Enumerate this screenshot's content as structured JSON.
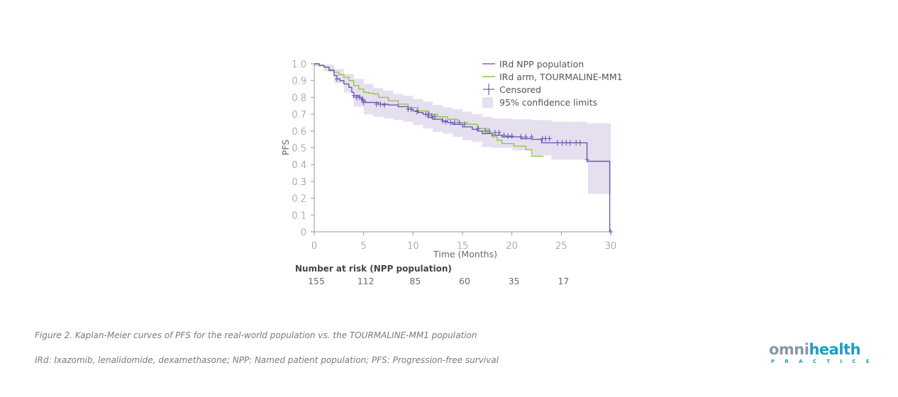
{
  "chart_data": {
    "type": "line",
    "subtype": "kaplan-meier",
    "xlabel": "Time (Months)",
    "ylabel": "PFS",
    "xlim": [
      0,
      30
    ],
    "ylim": [
      0,
      1.0
    ],
    "xticks": [
      0,
      5,
      10,
      15,
      20,
      25,
      30
    ],
    "xtick_labels": [
      "0",
      "5",
      "10",
      "15",
      "20",
      "25",
      "30"
    ],
    "yticks": [
      0,
      0.1,
      0.2,
      0.3,
      0.4,
      0.5,
      0.6,
      0.7,
      0.8,
      0.9,
      1.0
    ],
    "ytick_labels": [
      "0",
      "0.1",
      "0.2",
      "0.3",
      "0.4",
      "0.5",
      "0.6",
      "0.7",
      "0.8",
      "0.9",
      "1.0"
    ],
    "grid": false,
    "legend_position": "top-right",
    "legend": [
      {
        "label": "IRd NPP population",
        "kind": "line",
        "color": "#6a5aad"
      },
      {
        "label": "IRd arm, TOURMALINE-MM1",
        "kind": "line",
        "color": "#8cc63f"
      },
      {
        "label": "Censored",
        "kind": "marker",
        "color": "#6a5aad"
      },
      {
        "label": "95% confidence limits",
        "kind": "band",
        "color": "#e6dff0"
      }
    ],
    "series": [
      {
        "name": "IRd NPP population",
        "color": "#6a5aad",
        "steps": [
          [
            0,
            1.0
          ],
          [
            0.5,
            0.99
          ],
          [
            1.0,
            0.98
          ],
          [
            1.5,
            0.96
          ],
          [
            2.0,
            0.93
          ],
          [
            2.3,
            0.91
          ],
          [
            2.6,
            0.9
          ],
          [
            3.0,
            0.88
          ],
          [
            3.5,
            0.86
          ],
          [
            3.8,
            0.83
          ],
          [
            4.0,
            0.81
          ],
          [
            4.5,
            0.8
          ],
          [
            4.8,
            0.78
          ],
          [
            5.2,
            0.77
          ],
          [
            6.5,
            0.76
          ],
          [
            7.5,
            0.755
          ],
          [
            8.5,
            0.745
          ],
          [
            9.5,
            0.73
          ],
          [
            10.0,
            0.72
          ],
          [
            10.5,
            0.71
          ],
          [
            11.0,
            0.7
          ],
          [
            11.5,
            0.68
          ],
          [
            12.0,
            0.67
          ],
          [
            13.0,
            0.66
          ],
          [
            13.5,
            0.65
          ],
          [
            14.0,
            0.64
          ],
          [
            15.0,
            0.625
          ],
          [
            16.0,
            0.61
          ],
          [
            16.5,
            0.6
          ],
          [
            17.0,
            0.585
          ],
          [
            18.0,
            0.575
          ],
          [
            19.0,
            0.565
          ],
          [
            21.0,
            0.555
          ],
          [
            22.0,
            0.55
          ],
          [
            23.0,
            0.53
          ],
          [
            27.6,
            0.42
          ],
          [
            29.9,
            0.0
          ]
        ],
        "end": 29.9
      },
      {
        "name": "IRd arm, TOURMALINE-MM1",
        "color": "#8cc63f",
        "steps": [
          [
            0,
            1.0
          ],
          [
            0.5,
            0.99
          ],
          [
            1.0,
            0.98
          ],
          [
            1.5,
            0.965
          ],
          [
            2.0,
            0.95
          ],
          [
            2.5,
            0.935
          ],
          [
            3.0,
            0.92
          ],
          [
            3.5,
            0.9
          ],
          [
            4.0,
            0.87
          ],
          [
            4.5,
            0.85
          ],
          [
            5.0,
            0.83
          ],
          [
            5.5,
            0.825
          ],
          [
            6.0,
            0.82
          ],
          [
            6.5,
            0.8
          ],
          [
            7.5,
            0.78
          ],
          [
            8.5,
            0.76
          ],
          [
            9.5,
            0.74
          ],
          [
            10.5,
            0.72
          ],
          [
            11.5,
            0.7
          ],
          [
            12.5,
            0.685
          ],
          [
            13.5,
            0.67
          ],
          [
            14.5,
            0.65
          ],
          [
            15.5,
            0.64
          ],
          [
            16.5,
            0.615
          ],
          [
            17.5,
            0.59
          ],
          [
            18.0,
            0.565
          ],
          [
            18.5,
            0.545
          ],
          [
            19.0,
            0.525
          ],
          [
            20.2,
            0.51
          ],
          [
            21.4,
            0.49
          ],
          [
            22.0,
            0.45
          ]
        ],
        "end": 23.2
      }
    ],
    "censored": [
      [
        2.3,
        0.91
      ],
      [
        4.0,
        0.81
      ],
      [
        4.3,
        0.8
      ],
      [
        4.6,
        0.8
      ],
      [
        4.9,
        0.79
      ],
      [
        5.0,
        0.77
      ],
      [
        6.3,
        0.76
      ],
      [
        6.7,
        0.76
      ],
      [
        7.1,
        0.755
      ],
      [
        9.5,
        0.73
      ],
      [
        9.8,
        0.73
      ],
      [
        10.4,
        0.715
      ],
      [
        11.3,
        0.7
      ],
      [
        11.6,
        0.7
      ],
      [
        11.9,
        0.69
      ],
      [
        12.2,
        0.685
      ],
      [
        13.0,
        0.66
      ],
      [
        13.3,
        0.655
      ],
      [
        13.8,
        0.65
      ],
      [
        14.2,
        0.65
      ],
      [
        14.7,
        0.65
      ],
      [
        15.2,
        0.64
      ],
      [
        16.6,
        0.615
      ],
      [
        17.3,
        0.6
      ],
      [
        17.7,
        0.6
      ],
      [
        18.3,
        0.59
      ],
      [
        18.7,
        0.59
      ],
      [
        19.2,
        0.575
      ],
      [
        19.6,
        0.57
      ],
      [
        20.0,
        0.57
      ],
      [
        20.9,
        0.565
      ],
      [
        21.4,
        0.565
      ],
      [
        22.0,
        0.565
      ],
      [
        23.1,
        0.555
      ],
      [
        23.4,
        0.555
      ],
      [
        23.8,
        0.555
      ],
      [
        24.6,
        0.53
      ],
      [
        25.1,
        0.53
      ],
      [
        25.5,
        0.53
      ],
      [
        25.9,
        0.53
      ],
      [
        26.5,
        0.53
      ],
      [
        26.9,
        0.53
      ],
      [
        27.6,
        0.43
      ],
      [
        30,
        0.0
      ]
    ],
    "ci_band": {
      "upper": [
        [
          0,
          1.0
        ],
        [
          1.0,
          0.995
        ],
        [
          2.0,
          0.97
        ],
        [
          3.0,
          0.94
        ],
        [
          4.0,
          0.91
        ],
        [
          5.0,
          0.88
        ],
        [
          6.0,
          0.855
        ],
        [
          7.0,
          0.84
        ],
        [
          8.0,
          0.82
        ],
        [
          9.0,
          0.81
        ],
        [
          10.0,
          0.79
        ],
        [
          11.0,
          0.775
        ],
        [
          12.0,
          0.755
        ],
        [
          13.0,
          0.74
        ],
        [
          14.0,
          0.73
        ],
        [
          15.0,
          0.715
        ],
        [
          16.0,
          0.7
        ],
        [
          17.0,
          0.685
        ],
        [
          18.0,
          0.675
        ],
        [
          20.0,
          0.67
        ],
        [
          22.0,
          0.665
        ],
        [
          24.0,
          0.655
        ],
        [
          27.6,
          0.645
        ],
        [
          30.0,
          0.61
        ]
      ],
      "lower": [
        [
          0,
          0.985
        ],
        [
          1.0,
          0.955
        ],
        [
          2.0,
          0.885
        ],
        [
          3.0,
          0.83
        ],
        [
          4.0,
          0.745
        ],
        [
          5.0,
          0.7
        ],
        [
          6.0,
          0.685
        ],
        [
          7.0,
          0.675
        ],
        [
          8.0,
          0.665
        ],
        [
          9.0,
          0.655
        ],
        [
          10.0,
          0.635
        ],
        [
          11.0,
          0.615
        ],
        [
          12.0,
          0.595
        ],
        [
          13.0,
          0.585
        ],
        [
          14.0,
          0.565
        ],
        [
          15.0,
          0.545
        ],
        [
          16.0,
          0.535
        ],
        [
          17.0,
          0.505
        ],
        [
          18.0,
          0.5
        ],
        [
          20.0,
          0.485
        ],
        [
          22.0,
          0.455
        ],
        [
          24.0,
          0.43
        ],
        [
          27.6,
          0.43
        ],
        [
          27.7,
          0.225
        ],
        [
          30.0,
          0.225
        ]
      ]
    },
    "number_at_risk": {
      "title": "Number at risk (NPP population)",
      "times": [
        0,
        5,
        10,
        15,
        20,
        25
      ],
      "values": [
        155,
        112,
        85,
        60,
        35,
        17
      ]
    }
  },
  "caption": {
    "figure_title": "Figure 2. Kaplan-Meier curves of PFS for the real-world population vs. the TOURMALINE-MM1 population",
    "abbreviations": "IRd: Ixazomib, lenalidomide, dexamethasone; NPP: Named patient population; PFS: Progression-free survival"
  },
  "logo": {
    "part1": "omni",
    "part2": "health",
    "subtitle": "PRACTICE"
  }
}
